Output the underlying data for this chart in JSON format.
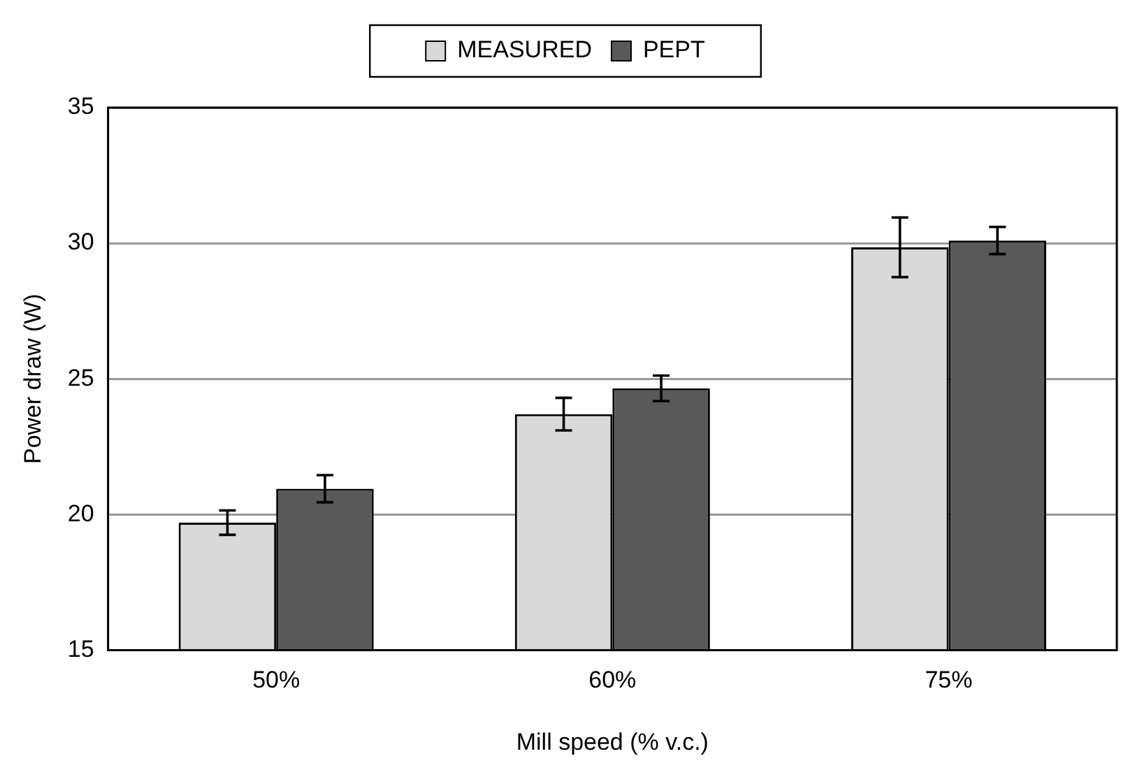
{
  "chart_data": {
    "type": "bar",
    "xlabel": "Mill speed (% v.c.)",
    "ylabel": "Power draw (W)",
    "categories": [
      "50%",
      "60%",
      "75%"
    ],
    "series": [
      {
        "name": "MEASURED",
        "color": "#d9d9d9",
        "values": [
          19.7,
          23.7,
          29.85
        ],
        "errors": [
          0.45,
          0.6,
          1.1
        ]
      },
      {
        "name": "PEPT",
        "color": "#595959",
        "values": [
          20.95,
          24.65,
          30.1
        ],
        "errors": [
          0.5,
          0.47,
          0.5
        ]
      }
    ],
    "ylim": [
      15,
      35
    ],
    "yticks": [
      15,
      20,
      25,
      30,
      35
    ],
    "grid": "y",
    "legend": "top"
  }
}
